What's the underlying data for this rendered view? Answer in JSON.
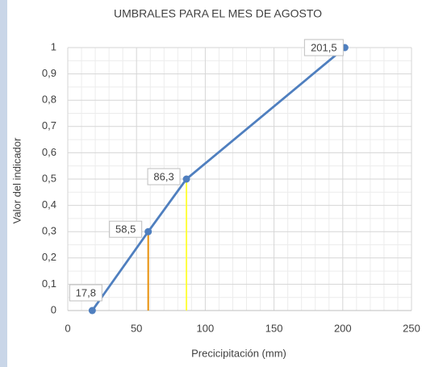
{
  "chart_data": {
    "type": "line",
    "title": "UMBRALES PARA EL MES DE AGOSTO",
    "x_label": "Precicipitación (mm)",
    "y_label": "Valor del indicador",
    "x": [
      17.8,
      58.5,
      86.3,
      201.5
    ],
    "series": [
      {
        "color": "#4f7fbf",
        "values": [
          0,
          0.3,
          0.5,
          1
        ],
        "value_labels": [
          "17,8",
          "58,5",
          "86,3",
          "201,5"
        ]
      }
    ],
    "drop_lines": [
      {
        "x": 58.5,
        "y": 0.3,
        "color": "#e8900a"
      },
      {
        "x": 86.3,
        "y": 0.5,
        "color": "#ffff40"
      }
    ],
    "xlim": [
      0,
      250
    ],
    "xticks": [
      0,
      50,
      100,
      150,
      200,
      250
    ],
    "ylim": [
      0,
      1
    ],
    "yticks": [
      0,
      {
        "value": 0.1,
        "label": "0,1"
      },
      {
        "value": 0.2,
        "label": "0,2"
      },
      {
        "value": 0.3,
        "label": "0,3"
      },
      {
        "value": 0.4,
        "label": "0,4"
      },
      {
        "value": 0.5,
        "label": "0,5"
      },
      {
        "value": 0.6,
        "label": "0,6"
      },
      {
        "value": 0.7,
        "label": "0,7"
      },
      {
        "value": 0.8,
        "label": "0,8"
      },
      {
        "value": 0.9,
        "label": "0,9"
      },
      1
    ],
    "grid": true,
    "minor_grid": true
  }
}
